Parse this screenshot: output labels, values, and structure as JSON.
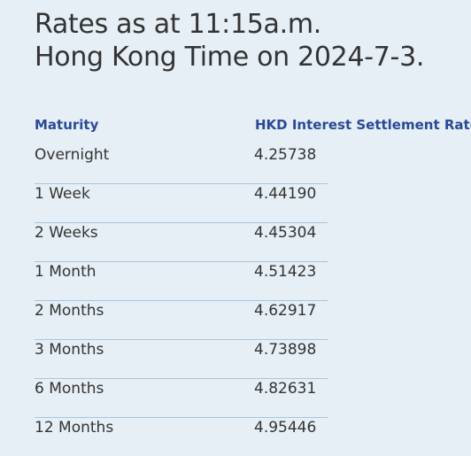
{
  "heading": {
    "line1": "Rates as at 11:15a.m.",
    "line2": "Hong Kong Time on 2024-7-3."
  },
  "table": {
    "headers": {
      "maturity": "Maturity",
      "rate": "HKD Interest Settlement Rates"
    },
    "rows": [
      {
        "maturity": "Overnight",
        "rate": "4.25738"
      },
      {
        "maturity": "1 Week",
        "rate": "4.44190"
      },
      {
        "maturity": "2 Weeks",
        "rate": "4.45304"
      },
      {
        "maturity": "1 Month",
        "rate": "4.51423"
      },
      {
        "maturity": "2 Months",
        "rate": "4.62917"
      },
      {
        "maturity": "3 Months",
        "rate": "4.73898"
      },
      {
        "maturity": "6 Months",
        "rate": "4.82631"
      },
      {
        "maturity": "12 Months",
        "rate": "4.95446"
      }
    ]
  },
  "colors": {
    "background": "#e6eff5",
    "header_text": "#2a4a97",
    "body_text": "#333333",
    "divider": "#a9c4dc"
  }
}
